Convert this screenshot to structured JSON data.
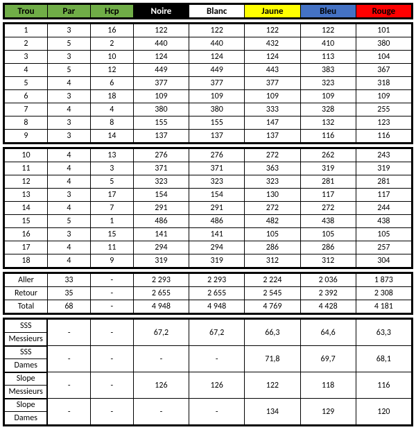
{
  "colors": {
    "green": "#70ad47",
    "black": "#000000",
    "white": "#ffffff",
    "yellow": "#ffff00",
    "blue": "#4472c4",
    "red": "#ff0000"
  },
  "headers": {
    "trou": "Trou",
    "par": "Par",
    "hcp": "Hcp",
    "noire": "Noire",
    "blanc": "Blanc",
    "jaune": "Jaune",
    "bleu": "Bleu",
    "rouge": "Rouge"
  },
  "front9": [
    {
      "trou": "1",
      "par": "3",
      "hcp": "16",
      "noire": "122",
      "blanc": "122",
      "jaune": "122",
      "bleu": "122",
      "rouge": "101"
    },
    {
      "trou": "2",
      "par": "5",
      "hcp": "2",
      "noire": "440",
      "blanc": "440",
      "jaune": "432",
      "bleu": "410",
      "rouge": "380"
    },
    {
      "trou": "3",
      "par": "3",
      "hcp": "10",
      "noire": "124",
      "blanc": "124",
      "jaune": "124",
      "bleu": "113",
      "rouge": "104"
    },
    {
      "trou": "4",
      "par": "5",
      "hcp": "12",
      "noire": "449",
      "blanc": "449",
      "jaune": "443",
      "bleu": "383",
      "rouge": "367"
    },
    {
      "trou": "5",
      "par": "4",
      "hcp": "6",
      "noire": "377",
      "blanc": "377",
      "jaune": "377",
      "bleu": "323",
      "rouge": "318"
    },
    {
      "trou": "6",
      "par": "3",
      "hcp": "18",
      "noire": "109",
      "blanc": "109",
      "jaune": "109",
      "bleu": "109",
      "rouge": "109"
    },
    {
      "trou": "7",
      "par": "4",
      "hcp": "4",
      "noire": "380",
      "blanc": "380",
      "jaune": "333",
      "bleu": "328",
      "rouge": "255"
    },
    {
      "trou": "8",
      "par": "3",
      "hcp": "8",
      "noire": "155",
      "blanc": "155",
      "jaune": "147",
      "bleu": "132",
      "rouge": "123"
    },
    {
      "trou": "9",
      "par": "3",
      "hcp": "14",
      "noire": "137",
      "blanc": "137",
      "jaune": "137",
      "bleu": "116",
      "rouge": "116"
    }
  ],
  "back9": [
    {
      "trou": "10",
      "par": "4",
      "hcp": "13",
      "noire": "276",
      "blanc": "276",
      "jaune": "272",
      "bleu": "262",
      "rouge": "243"
    },
    {
      "trou": "11",
      "par": "4",
      "hcp": "3",
      "noire": "371",
      "blanc": "371",
      "jaune": "363",
      "bleu": "319",
      "rouge": "319"
    },
    {
      "trou": "12",
      "par": "4",
      "hcp": "5",
      "noire": "323",
      "blanc": "323",
      "jaune": "323",
      "bleu": "281",
      "rouge": "281"
    },
    {
      "trou": "13",
      "par": "3",
      "hcp": "17",
      "noire": "154",
      "blanc": "154",
      "jaune": "130",
      "bleu": "117",
      "rouge": "117"
    },
    {
      "trou": "14",
      "par": "4",
      "hcp": "7",
      "noire": "291",
      "blanc": "291",
      "jaune": "272",
      "bleu": "272",
      "rouge": "244"
    },
    {
      "trou": "15",
      "par": "5",
      "hcp": "1",
      "noire": "486",
      "blanc": "486",
      "jaune": "482",
      "bleu": "438",
      "rouge": "438"
    },
    {
      "trou": "16",
      "par": "3",
      "hcp": "15",
      "noire": "141",
      "blanc": "141",
      "jaune": "105",
      "bleu": "105",
      "rouge": "105"
    },
    {
      "trou": "17",
      "par": "4",
      "hcp": "11",
      "noire": "294",
      "blanc": "294",
      "jaune": "286",
      "bleu": "286",
      "rouge": "257"
    },
    {
      "trou": "18",
      "par": "4",
      "hcp": "9",
      "noire": "319",
      "blanc": "319",
      "jaune": "312",
      "bleu": "312",
      "rouge": "304"
    }
  ],
  "totals": [
    {
      "label": "Aller",
      "par": "33",
      "hcp": "-",
      "noire": "2 293",
      "blanc": "2 293",
      "jaune": "2 224",
      "bleu": "2 036",
      "rouge": "1 873"
    },
    {
      "label": "Retour",
      "par": "35",
      "hcp": "-",
      "noire": "2 655",
      "blanc": "2 655",
      "jaune": "2 545",
      "bleu": "2 392",
      "rouge": "2 308"
    },
    {
      "label": "Total",
      "par": "68",
      "hcp": "-",
      "noire": "4 948",
      "blanc": "4 948",
      "jaune": "4 769",
      "bleu": "4 428",
      "rouge": "4 181"
    }
  ],
  "ratings": [
    {
      "label1": "SSS",
      "label2": "Messieurs",
      "par": "-",
      "hcp": "-",
      "noire": "67,2",
      "blanc": "67,2",
      "jaune": "66,3",
      "bleu": "64,6",
      "rouge": "63,3"
    },
    {
      "label1": "SSS",
      "label2": "Dames",
      "par": "-",
      "hcp": "-",
      "noire": "-",
      "blanc": "-",
      "jaune": "71,8",
      "bleu": "69,7",
      "rouge": "68,1"
    },
    {
      "label1": "Slope",
      "label2": "Messieurs",
      "par": "-",
      "hcp": "-",
      "noire": "126",
      "blanc": "126",
      "jaune": "122",
      "bleu": "118",
      "rouge": "116"
    },
    {
      "label1": "Slope",
      "label2": "Dames",
      "par": "-",
      "hcp": "-",
      "noire": "-",
      "blanc": "-",
      "jaune": "134",
      "bleu": "129",
      "rouge": "120"
    }
  ]
}
